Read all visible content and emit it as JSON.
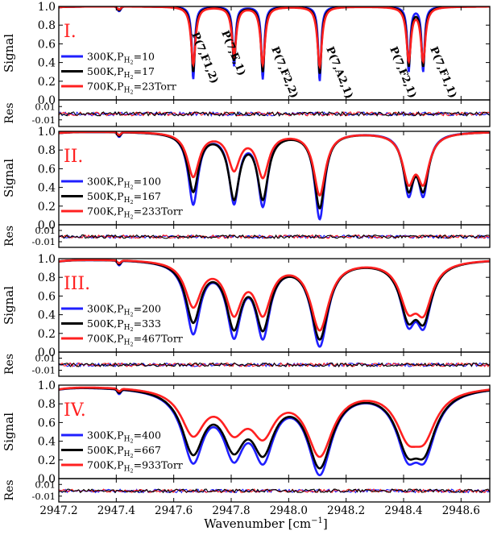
{
  "figure": {
    "xlabel": "Wavenumber [cm",
    "xlabel_sup": "−1",
    "xlabel_close": "]",
    "ylabel_signal": "Signal",
    "ylabel_res": "Res",
    "colors": {
      "300K": "#1f1fff",
      "500K": "#000000",
      "700K": "#ff2020",
      "roman": "#ff2020"
    }
  },
  "chart_data": {
    "type": "line",
    "xlim": [
      2947.2,
      2948.7
    ],
    "x_ticks": [
      "2947.2",
      "2947.4",
      "2947.6",
      "2947.8",
      "2948.0",
      "2948.2",
      "2948.4",
      "2948.6"
    ],
    "x_tick_values": [
      2947.2,
      2947.4,
      2947.6,
      2947.8,
      2948.0,
      2948.2,
      2948.4,
      2948.6
    ],
    "signal_ylim": [
      0.0,
      1.0
    ],
    "signal_yticks": [
      "0.0",
      "0.2",
      "0.4",
      "0.6",
      "0.8",
      "1.0"
    ],
    "res_yticks": [
      "0.01",
      "-0.01"
    ],
    "line_positions": [
      2947.668,
      2947.81,
      2947.91,
      2948.108,
      2948.418,
      2948.468
    ],
    "line_labels": [
      "P(7,F1,2)",
      "P(7,E,1)",
      "P(7,F2,2)",
      "P(7,A2,1)",
      "P(7,F2,1)",
      "P(7,F1,1)"
    ],
    "panels": [
      {
        "roman": "I.",
        "legend": [
          {
            "temp": "300K",
            "rest": "=10"
          },
          {
            "temp": "500K",
            "rest": "=17"
          },
          {
            "temp": "700K",
            "rest": "=23Torr"
          }
        ],
        "series": [
          {
            "temp": "300K",
            "line_min": [
              0.22,
              0.36,
              0.22,
              0.2,
              0.3,
              0.3
            ],
            "dip_width": [
              0.006,
              0.006,
              0.006,
              0.006,
              0.006,
              0.006
            ],
            "small_dip": 0.05
          },
          {
            "temp": "500K",
            "line_min": [
              0.3,
              0.42,
              0.3,
              0.28,
              0.36,
              0.36
            ],
            "dip_width": [
              0.0078,
              0.0078,
              0.0078,
              0.0078,
              0.0078,
              0.0078
            ],
            "small_dip": 0.04
          },
          {
            "temp": "700K",
            "line_min": [
              0.38,
              0.48,
              0.38,
              0.36,
              0.42,
              0.42
            ],
            "dip_width": [
              0.0095,
              0.0095,
              0.0095,
              0.0095,
              0.0095,
              0.0095
            ],
            "small_dip": 0.03
          }
        ]
      },
      {
        "roman": "II.",
        "legend": [
          {
            "temp": "300K",
            "rest": "=100"
          },
          {
            "temp": "500K",
            "rest": "=167"
          },
          {
            "temp": "700K",
            "rest": "=233Torr"
          }
        ],
        "series": [
          {
            "temp": "300K",
            "line_min": [
              0.22,
              0.23,
              0.2,
              0.06,
              0.33,
              0.33
            ],
            "dip_width": [
              0.021,
              0.021,
              0.021,
              0.021,
              0.021,
              0.021
            ],
            "small_dip": 0.05
          },
          {
            "temp": "500K",
            "line_min": [
              0.36,
              0.28,
              0.28,
              0.18,
              0.39,
              0.39
            ],
            "dip_width": [
              0.023,
              0.023,
              0.023,
              0.023,
              0.023,
              0.023
            ],
            "small_dip": 0.04
          },
          {
            "temp": "700K",
            "line_min": [
              0.52,
              0.6,
              0.52,
              0.32,
              0.47,
              0.47
            ],
            "dip_width": [
              0.025,
              0.025,
              0.025,
              0.025,
              0.025,
              0.025
            ],
            "small_dip": 0.03
          }
        ]
      },
      {
        "roman": "III.",
        "legend": [
          {
            "temp": "300K",
            "rest": "=200"
          },
          {
            "temp": "500K",
            "rest": "=333"
          },
          {
            "temp": "700K",
            "rest": "=467Torr"
          }
        ],
        "series": [
          {
            "temp": "300K",
            "line_min": [
              0.2,
              0.16,
              0.15,
              0.06,
              0.32,
              0.3
            ],
            "dip_width": [
              0.03,
              0.03,
              0.03,
              0.035,
              0.032,
              0.032
            ],
            "small_dip": 0.05
          },
          {
            "temp": "500K",
            "line_min": [
              0.33,
              0.26,
              0.25,
              0.14,
              0.38,
              0.36
            ],
            "dip_width": [
              0.032,
              0.032,
              0.032,
              0.037,
              0.034,
              0.034
            ],
            "small_dip": 0.04
          },
          {
            "temp": "700K",
            "line_min": [
              0.5,
              0.42,
              0.42,
              0.24,
              0.49,
              0.46
            ],
            "dip_width": [
              0.034,
              0.034,
              0.034,
              0.039,
              0.036,
              0.036
            ],
            "small_dip": 0.03
          }
        ]
      },
      {
        "roman": "IV.",
        "legend": [
          {
            "temp": "300K",
            "rest": "=400"
          },
          {
            "temp": "500K",
            "rest": "=667"
          },
          {
            "temp": "700K",
            "rest": "=933Torr"
          }
        ],
        "series": [
          {
            "temp": "300K",
            "line_min": [
              0.18,
              0.22,
              0.19,
              0.04,
              0.24,
              0.24
            ],
            "dip_width": [
              0.045,
              0.045,
              0.045,
              0.05,
              0.045,
              0.045
            ],
            "small_dip": 0.05
          },
          {
            "temp": "500K",
            "line_min": [
              0.28,
              0.33,
              0.29,
              0.12,
              0.32,
              0.32
            ],
            "dip_width": [
              0.047,
              0.047,
              0.047,
              0.052,
              0.047,
              0.047
            ],
            "small_dip": 0.04
          },
          {
            "temp": "700K",
            "line_min": [
              0.49,
              0.54,
              0.49,
              0.25,
              0.49,
              0.49
            ],
            "dip_width": [
              0.05,
              0.05,
              0.05,
              0.055,
              0.05,
              0.05
            ],
            "small_dip": 0.03
          }
        ]
      }
    ]
  }
}
